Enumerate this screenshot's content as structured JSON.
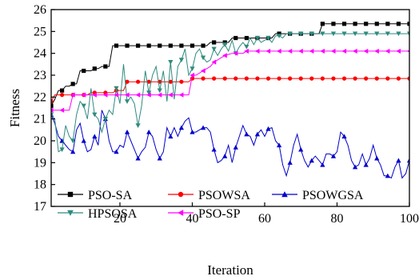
{
  "chart_data": {
    "type": "line",
    "xlabel": "Iteration",
    "ylabel": "Fitness",
    "xlim": [
      1,
      100
    ],
    "ylim": [
      17,
      26
    ],
    "x_ticks": [
      20,
      40,
      60,
      80,
      100
    ],
    "y_ticks": [
      17,
      18,
      19,
      20,
      21,
      22,
      23,
      24,
      25,
      26
    ],
    "grid": false,
    "legend_position": "bottom",
    "series": [
      {
        "name": "PSO-SA",
        "color": "#000000",
        "marker": "square",
        "x": [
          1,
          2,
          3,
          4,
          5,
          6,
          7,
          8,
          9,
          10,
          11,
          12,
          13,
          14,
          15,
          16,
          17,
          18,
          19,
          20,
          21,
          22,
          23,
          24,
          25,
          26,
          27,
          28,
          29,
          30,
          31,
          32,
          33,
          34,
          35,
          36,
          37,
          38,
          39,
          40,
          41,
          42,
          43,
          44,
          45,
          46,
          47,
          48,
          49,
          50,
          51,
          52,
          53,
          54,
          55,
          56,
          57,
          58,
          59,
          60,
          61,
          62,
          63,
          64,
          65,
          66,
          67,
          68,
          69,
          70,
          71,
          72,
          73,
          74,
          75,
          76,
          77,
          78,
          79,
          80,
          81,
          82,
          83,
          84,
          85,
          86,
          87,
          88,
          89,
          90,
          91,
          92,
          93,
          94,
          95,
          96,
          97,
          98,
          99,
          100
        ],
        "values": [
          21.6,
          21.9,
          22.3,
          22.3,
          22.5,
          22.5,
          22.6,
          22.6,
          23.2,
          23.2,
          23.2,
          23.2,
          23.3,
          23.3,
          23.4,
          23.4,
          23.4,
          24.35,
          24.35,
          24.35,
          24.35,
          24.35,
          24.35,
          24.35,
          24.35,
          24.35,
          24.35,
          24.35,
          24.35,
          24.35,
          24.35,
          24.35,
          24.35,
          24.35,
          24.35,
          24.35,
          24.35,
          24.35,
          24.35,
          24.35,
          24.35,
          24.35,
          24.35,
          24.35,
          24.5,
          24.5,
          24.5,
          24.5,
          24.5,
          24.5,
          24.7,
          24.7,
          24.7,
          24.7,
          24.7,
          24.7,
          24.7,
          24.7,
          24.7,
          24.7,
          24.7,
          24.7,
          24.9,
          24.9,
          24.9,
          24.9,
          24.9,
          24.9,
          24.9,
          24.9,
          24.9,
          24.9,
          24.9,
          24.9,
          24.9,
          25.35,
          25.35,
          25.35,
          25.35,
          25.35,
          25.35,
          25.35,
          25.35,
          25.35,
          25.35,
          25.35,
          25.35,
          25.35,
          25.35,
          25.35,
          25.35,
          25.35,
          25.35,
          25.35,
          25.35,
          25.35,
          25.35,
          25.35,
          25.35,
          25.35
        ]
      },
      {
        "name": "PSOWSA",
        "color": "#ff0000",
        "marker": "circle",
        "x": [
          1,
          2,
          3,
          4,
          5,
          6,
          7,
          8,
          9,
          10,
          11,
          12,
          13,
          14,
          15,
          16,
          17,
          18,
          19,
          20,
          21,
          22,
          23,
          24,
          25,
          26,
          27,
          28,
          29,
          30,
          31,
          32,
          33,
          34,
          35,
          36,
          37,
          38,
          39,
          40,
          41,
          42,
          43,
          44,
          45,
          46,
          47,
          48,
          49,
          50,
          51,
          52,
          53,
          54,
          55,
          56,
          57,
          58,
          59,
          60,
          61,
          62,
          63,
          64,
          65,
          66,
          67,
          68,
          69,
          70,
          71,
          72,
          73,
          74,
          75,
          76,
          77,
          78,
          79,
          80,
          81,
          82,
          83,
          84,
          85,
          86,
          87,
          88,
          89,
          90,
          91,
          92,
          93,
          94,
          95,
          96,
          97,
          98,
          99,
          100
        ],
        "values": [
          21.8,
          22.1,
          22.1,
          22.1,
          22.1,
          22.1,
          22.1,
          22.1,
          22.1,
          22.1,
          22.1,
          22.2,
          22.2,
          22.2,
          22.2,
          22.2,
          22.2,
          22.2,
          22.3,
          22.3,
          22.3,
          22.7,
          22.7,
          22.7,
          22.7,
          22.7,
          22.7,
          22.7,
          22.7,
          22.7,
          22.7,
          22.7,
          22.7,
          22.7,
          22.7,
          22.7,
          22.7,
          22.7,
          22.7,
          22.85,
          22.85,
          22.85,
          22.85,
          22.85,
          22.85,
          22.85,
          22.85,
          22.85,
          22.85,
          22.85,
          22.85,
          22.85,
          22.85,
          22.85,
          22.85,
          22.85,
          22.85,
          22.85,
          22.85,
          22.85,
          22.85,
          22.85,
          22.85,
          22.85,
          22.85,
          22.85,
          22.85,
          22.85,
          22.85,
          22.85,
          22.85,
          22.85,
          22.85,
          22.85,
          22.85,
          22.85,
          22.85,
          22.85,
          22.85,
          22.85,
          22.85,
          22.85,
          22.85,
          22.85,
          22.85,
          22.85,
          22.85,
          22.85,
          22.85,
          22.85,
          22.85,
          22.85,
          22.85,
          22.85,
          22.85,
          22.85,
          22.85,
          22.85,
          22.85,
          22.85
        ]
      },
      {
        "name": "PSOWGSA",
        "color": "#0000cc",
        "marker": "triangle-up",
        "x": [
          1,
          2,
          3,
          4,
          5,
          6,
          7,
          8,
          9,
          10,
          11,
          12,
          13,
          14,
          15,
          16,
          17,
          18,
          19,
          20,
          21,
          22,
          23,
          24,
          25,
          26,
          27,
          28,
          29,
          30,
          31,
          32,
          33,
          34,
          35,
          36,
          37,
          38,
          39,
          40,
          41,
          42,
          43,
          44,
          45,
          46,
          47,
          48,
          49,
          50,
          51,
          52,
          53,
          54,
          55,
          56,
          57,
          58,
          59,
          60,
          61,
          62,
          63,
          64,
          65,
          66,
          67,
          68,
          69,
          70,
          71,
          72,
          73,
          74,
          75,
          76,
          77,
          78,
          79,
          80,
          81,
          82,
          83,
          84,
          85,
          86,
          87,
          88,
          89,
          90,
          91,
          92,
          93,
          94,
          95,
          96,
          97,
          98,
          99,
          100
        ],
        "values": [
          21.2,
          20.8,
          20.2,
          20.0,
          19.8,
          19.6,
          19.5,
          20.5,
          20.8,
          20.0,
          19.5,
          19.6,
          20.2,
          19.8,
          21.4,
          21.0,
          20.0,
          19.5,
          19.5,
          19.8,
          19.7,
          20.4,
          20.0,
          19.6,
          19.2,
          19.5,
          19.7,
          20.4,
          20.2,
          19.6,
          19.2,
          19.5,
          20.6,
          20.2,
          20.6,
          20.2,
          20.6,
          20.9,
          21.05,
          20.4,
          20.4,
          20.5,
          20.6,
          20.6,
          20.4,
          19.6,
          19.0,
          19.1,
          19.3,
          19.8,
          19.0,
          19.7,
          20.2,
          20.7,
          20.3,
          20.2,
          19.8,
          20.3,
          20.5,
          20.2,
          20.55,
          20.6,
          20.0,
          19.8,
          18.9,
          18.4,
          19.0,
          19.8,
          20.3,
          19.6,
          19.1,
          18.8,
          19.1,
          19.3,
          19.1,
          18.9,
          19.4,
          19.4,
          19.3,
          19.5,
          20.4,
          20.2,
          19.8,
          19.1,
          18.8,
          18.9,
          19.4,
          18.9,
          19.2,
          19.8,
          19.2,
          18.9,
          18.4,
          18.4,
          18.3,
          18.8,
          19.1,
          18.3,
          18.5,
          19.1
        ]
      },
      {
        "name": "HPSOSA",
        "color": "#2e8b7f",
        "marker": "triangle-down",
        "x": [
          1,
          2,
          3,
          4,
          5,
          6,
          7,
          8,
          9,
          10,
          11,
          12,
          13,
          14,
          15,
          16,
          17,
          18,
          19,
          20,
          21,
          22,
          23,
          24,
          25,
          26,
          27,
          28,
          29,
          30,
          31,
          32,
          33,
          34,
          35,
          36,
          37,
          38,
          39,
          40,
          41,
          42,
          43,
          44,
          45,
          46,
          47,
          48,
          49,
          50,
          51,
          52,
          53,
          54,
          55,
          56,
          57,
          58,
          59,
          60,
          61,
          62,
          63,
          64,
          65,
          66,
          67,
          68,
          69,
          70,
          71,
          72,
          73,
          74,
          75,
          76,
          77,
          78,
          79,
          80,
          81,
          82,
          83,
          84,
          85,
          86,
          87,
          88,
          89,
          90,
          91,
          92,
          93,
          94,
          95,
          96,
          97,
          98,
          99,
          100
        ],
        "values": [
          21.2,
          21.0,
          19.5,
          19.6,
          20.7,
          20.2,
          20.0,
          21.2,
          21.8,
          21.6,
          21.0,
          22.4,
          21.2,
          21.0,
          20.4,
          21.0,
          21.4,
          21.2,
          22.4,
          21.7,
          23.5,
          21.8,
          22.0,
          21.7,
          20.7,
          21.6,
          23.2,
          22.2,
          23.0,
          23.4,
          22.3,
          23.2,
          21.8,
          23.6,
          21.9,
          23.4,
          23.7,
          24.2,
          23.0,
          23.3,
          24.0,
          24.2,
          23.8,
          23.6,
          23.7,
          24.2,
          23.9,
          24.2,
          24.4,
          24.1,
          24.6,
          24.0,
          24.3,
          24.5,
          24.3,
          24.7,
          24.4,
          24.7,
          24.5,
          24.6,
          24.7,
          24.5,
          24.8,
          24.8,
          24.7,
          24.9,
          24.9,
          24.9,
          24.9,
          24.9,
          24.9,
          24.9,
          24.9,
          24.9,
          24.9,
          24.9,
          24.9,
          24.9,
          24.9,
          24.9,
          24.9,
          24.9,
          24.9,
          24.9,
          24.9,
          24.9,
          24.9,
          24.9,
          24.9,
          24.9,
          24.9,
          24.9,
          24.9,
          24.9,
          24.9,
          24.9,
          24.9,
          24.9,
          24.9,
          24.9
        ]
      },
      {
        "name": "PSO-SP",
        "color": "#ff00ff",
        "marker": "triangle-left",
        "x": [
          1,
          2,
          3,
          4,
          5,
          6,
          7,
          8,
          9,
          10,
          11,
          12,
          13,
          14,
          15,
          16,
          17,
          18,
          19,
          20,
          21,
          22,
          23,
          24,
          25,
          26,
          27,
          28,
          29,
          30,
          31,
          32,
          33,
          34,
          35,
          36,
          37,
          38,
          39,
          40,
          41,
          42,
          43,
          44,
          45,
          46,
          47,
          48,
          49,
          50,
          51,
          52,
          53,
          54,
          55,
          56,
          57,
          58,
          59,
          60,
          61,
          62,
          63,
          64,
          65,
          66,
          67,
          68,
          69,
          70,
          71,
          72,
          73,
          74,
          75,
          76,
          77,
          78,
          79,
          80,
          81,
          82,
          83,
          84,
          85,
          86,
          87,
          88,
          89,
          90,
          91,
          92,
          93,
          94,
          95,
          96,
          97,
          98,
          99,
          100
        ],
        "values": [
          21.4,
          21.4,
          21.4,
          21.4,
          21.4,
          21.4,
          22.1,
          22.1,
          22.1,
          22.1,
          22.1,
          22.1,
          22.1,
          22.1,
          22.1,
          22.1,
          22.1,
          22.1,
          22.1,
          22.1,
          22.1,
          22.1,
          22.1,
          22.1,
          22.1,
          22.1,
          22.1,
          22.1,
          22.1,
          22.1,
          22.1,
          22.1,
          22.1,
          22.1,
          22.1,
          22.1,
          22.1,
          22.1,
          22.1,
          23.0,
          23.0,
          23.1,
          23.2,
          23.3,
          23.4,
          23.6,
          23.7,
          23.8,
          23.9,
          23.95,
          24.0,
          24.0,
          24.0,
          24.0,
          24.1,
          24.1,
          24.1,
          24.1,
          24.1,
          24.1,
          24.1,
          24.1,
          24.1,
          24.1,
          24.1,
          24.1,
          24.1,
          24.1,
          24.1,
          24.1,
          24.1,
          24.1,
          24.1,
          24.1,
          24.1,
          24.1,
          24.1,
          24.1,
          24.1,
          24.1,
          24.1,
          24.1,
          24.1,
          24.1,
          24.1,
          24.1,
          24.1,
          24.1,
          24.1,
          24.1,
          24.1,
          24.1,
          24.1,
          24.1,
          24.1,
          24.1,
          24.1,
          24.1,
          24.1,
          24.1
        ]
      }
    ]
  }
}
